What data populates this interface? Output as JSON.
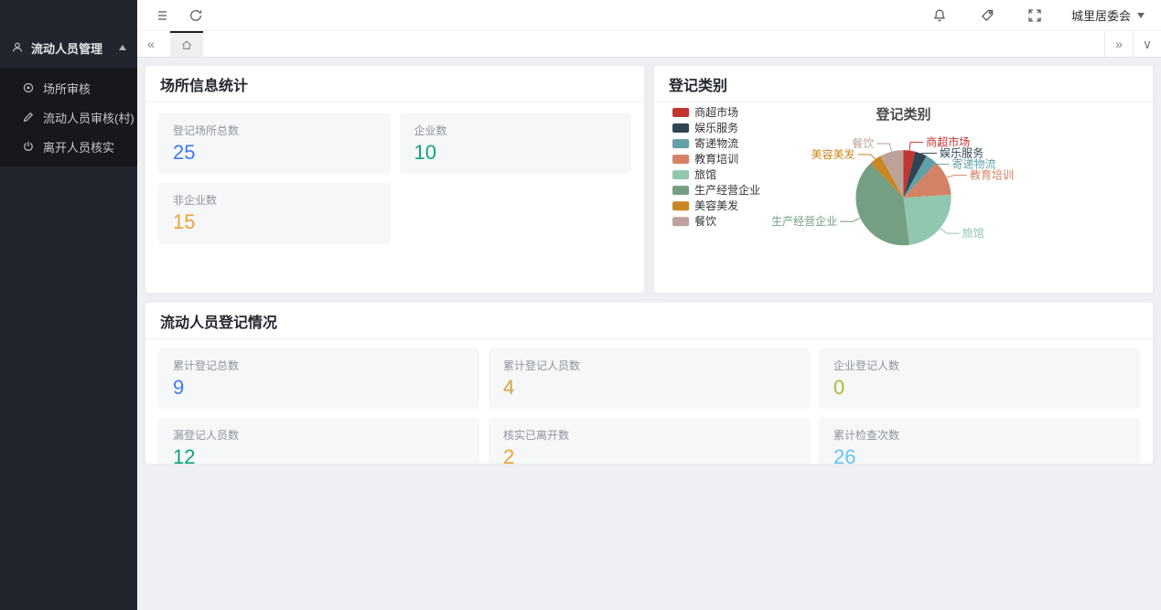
{
  "sidebar": {
    "menu": {
      "label": "流动人员管理"
    },
    "submenu": [
      {
        "label": "场所审核"
      },
      {
        "label": "流动人员审核(村)"
      },
      {
        "label": "离开人员核实"
      }
    ]
  },
  "topbar": {
    "user": "城里居委会"
  },
  "tabbar": {
    "collapse_glyph": "«",
    "expand_glyph": "»",
    "more_glyph": "∨"
  },
  "cards": {
    "place_stats": {
      "title": "场所信息统计",
      "stats": [
        {
          "label": "登记场所总数",
          "value": "25",
          "color": "#3d7bf4"
        },
        {
          "label": "企业数",
          "value": "10",
          "color": "#0ea579"
        },
        {
          "label": "非企业数",
          "value": "15",
          "color": "#eea236"
        }
      ]
    },
    "category": {
      "title": "登记类别"
    },
    "person_stats": {
      "title": "流动人员登记情况",
      "stats": [
        {
          "label": "累计登记总数",
          "value": "9",
          "color": "#3d7bf4"
        },
        {
          "label": "累计登记人员数",
          "value": "4",
          "color": "#d0a145"
        },
        {
          "label": "企业登记人数",
          "value": "0",
          "color": "#b4b832"
        },
        {
          "label": "漏登记人员数",
          "value": "12",
          "color": "#0ea579"
        },
        {
          "label": "核实已离开数",
          "value": "2",
          "color": "#eea236"
        },
        {
          "label": "累计检查次数",
          "value": "26",
          "color": "#66c3f2"
        }
      ]
    }
  },
  "chart_data": {
    "type": "pie",
    "title": "登记类别",
    "categories": [
      "商超市场",
      "娱乐服务",
      "寄递物流",
      "教育培训",
      "旅馆",
      "生产经营企业",
      "美容美发",
      "餐饮"
    ],
    "values": [
      1,
      1,
      1,
      3,
      6,
      10,
      1,
      2
    ],
    "colors": [
      "#c23531",
      "#2f4554",
      "#61a0a8",
      "#d48265",
      "#91c7ae",
      "#749f83",
      "#ca8622",
      "#bda29a"
    ],
    "legend_position": "left",
    "label_lines": true
  }
}
